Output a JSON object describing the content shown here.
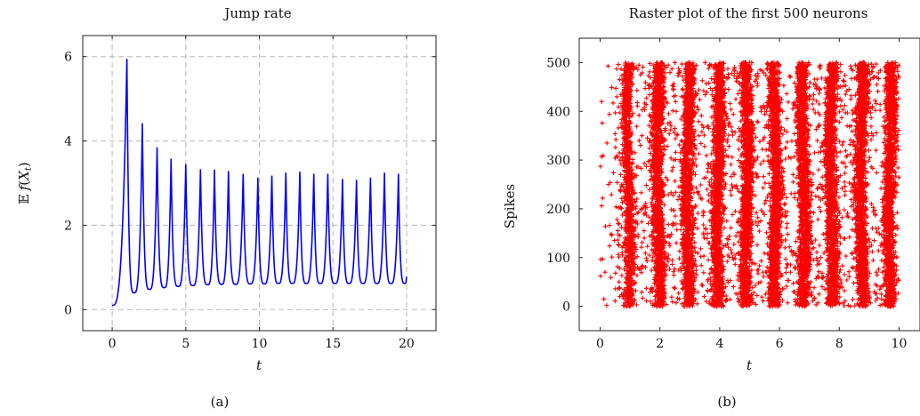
{
  "chart_data": [
    {
      "type": "line",
      "title": "Jump rate",
      "xlabel": "t",
      "ylabel": "E f(X_t)",
      "xlim": [
        -2,
        22
      ],
      "ylim": [
        -0.5,
        6.5
      ],
      "xticks": [
        0,
        5,
        10,
        15,
        20
      ],
      "yticks": [
        0,
        2,
        4,
        6
      ],
      "grid": true,
      "color": "#0000ff",
      "caption": "(a)",
      "peaks": {
        "t": [
          1.0,
          2.05,
          3.05,
          4.0,
          5.0,
          6.0,
          6.95,
          7.9,
          8.9,
          9.9,
          10.85,
          11.8,
          12.75,
          13.7,
          14.65,
          15.65,
          16.6,
          17.55,
          18.5,
          19.45
        ],
        "value": [
          5.95,
          4.42,
          3.85,
          3.58,
          3.45,
          3.33,
          3.32,
          3.29,
          3.22,
          3.13,
          3.18,
          3.25,
          3.27,
          3.22,
          3.22,
          3.1,
          3.08,
          3.13,
          3.25,
          3.22
        ]
      },
      "troughs": {
        "t": [
          0.0,
          1.5,
          2.55,
          3.55,
          4.5,
          5.5,
          6.5,
          7.45,
          8.4,
          9.4,
          10.35,
          11.3,
          12.25,
          13.2,
          14.15,
          15.15,
          16.1,
          17.05,
          18.0,
          18.95,
          19.9
        ],
        "value": [
          0.1,
          0.4,
          0.48,
          0.52,
          0.55,
          0.57,
          0.59,
          0.6,
          0.6,
          0.61,
          0.61,
          0.62,
          0.62,
          0.62,
          0.62,
          0.62,
          0.62,
          0.62,
          0.62,
          0.62,
          0.62
        ]
      },
      "end": {
        "t": 20.0,
        "value": 0.78
      }
    },
    {
      "type": "scatter",
      "title": "Raster plot of the first 500 neurons",
      "xlabel": "t",
      "ylabel": "Spikes",
      "xlim": [
        -0.7,
        10.7
      ],
      "ylim": [
        -50,
        550
      ],
      "xticks": [
        0,
        2,
        4,
        6,
        8,
        10
      ],
      "yticks": [
        0,
        100,
        200,
        300,
        400,
        500
      ],
      "grid": false,
      "marker": "+",
      "color": "#ff0000",
      "caption": "(b)",
      "neurons": 500,
      "t_range": [
        0,
        10
      ],
      "burst_centers": [
        0.95,
        1.95,
        2.95,
        3.95,
        4.9,
        5.85,
        6.8,
        7.75,
        8.75,
        9.7
      ]
    }
  ]
}
